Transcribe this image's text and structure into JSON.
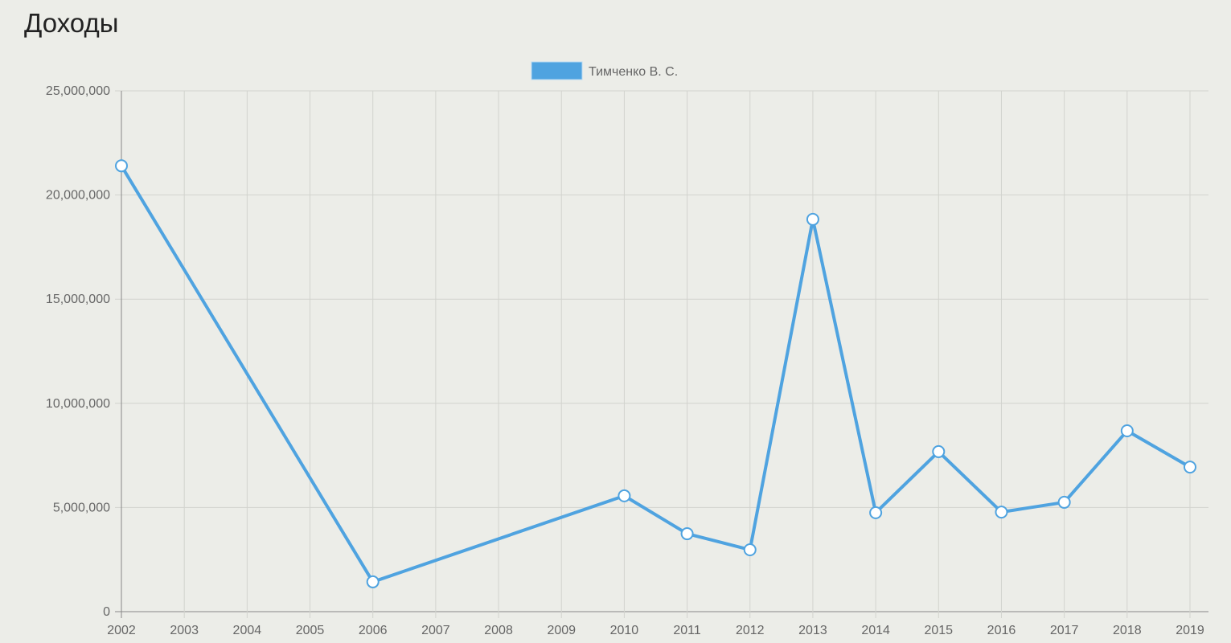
{
  "page_title": "Доходы",
  "chart_data": {
    "type": "line",
    "title": "",
    "xlabel": "",
    "ylabel": "",
    "categories": [
      "2002",
      "2003",
      "2004",
      "2005",
      "2006",
      "2007",
      "2008",
      "2009",
      "2010",
      "2011",
      "2012",
      "2013",
      "2014",
      "2015",
      "2016",
      "2017",
      "2018",
      "2019"
    ],
    "series": [
      {
        "name": "Тимченко В. С.",
        "color": "#4fa3e0",
        "values": [
          21400000,
          null,
          null,
          null,
          1430000,
          null,
          null,
          null,
          5560000,
          3740000,
          2970000,
          18830000,
          4750000,
          7680000,
          4780000,
          5250000,
          8680000,
          6940000
        ]
      }
    ],
    "ylim": [
      0,
      25000000
    ],
    "yticks": [
      "0",
      "5,000,000",
      "10,000,000",
      "15,000,000",
      "20,000,000",
      "25,000,000"
    ],
    "ytick_values": [
      0,
      5000000,
      10000000,
      15000000,
      20000000,
      25000000
    ],
    "grid": true,
    "legend": "top-center",
    "span_gaps": true
  }
}
